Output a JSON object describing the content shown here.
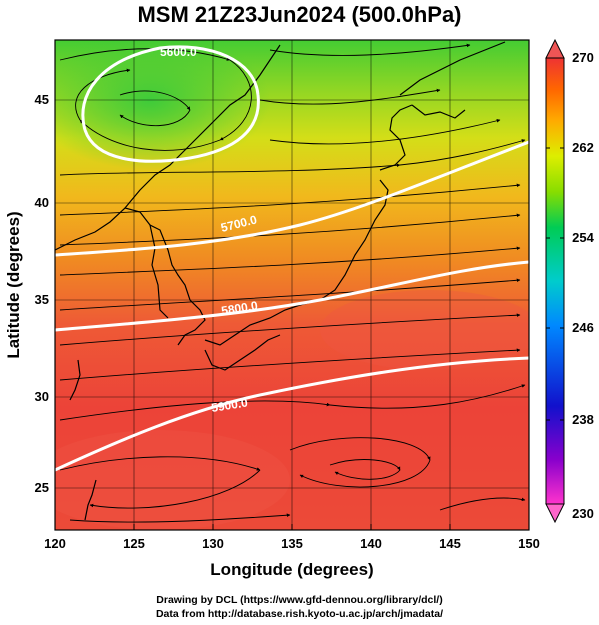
{
  "title": "MSM 21Z23Jun2024 (500.0hPa)",
  "x_axis": {
    "label": "Longitude (degrees)",
    "ticks": [
      "120",
      "125",
      "130",
      "135",
      "140",
      "145",
      "150"
    ]
  },
  "y_axis": {
    "label": "Latitude  (degrees)",
    "ticks": [
      "25",
      "30",
      "35",
      "40",
      "45"
    ]
  },
  "contours": [
    {
      "label": "5700.0"
    },
    {
      "label": "5800.0"
    },
    {
      "label": "5900.0"
    },
    {
      "label": "5600.0"
    }
  ],
  "colorbar": {
    "ticks": [
      "270",
      "262",
      "254",
      "246",
      "238",
      "230"
    ],
    "colors": [
      "#ff33cc",
      "#8800cc",
      "#1111cc",
      "#0088ff",
      "#00cccc",
      "#00cc55",
      "#88dd00",
      "#ddee00",
      "#ffaa00",
      "#ff6600",
      "#ee3333"
    ]
  },
  "credits": {
    "line1": "Drawing by DCL (https://www.gfd-dennou.org/library/dcl/)",
    "line2": "Data from http://database.rish.kyoto-u.ac.jp/arch/jmadata/"
  }
}
